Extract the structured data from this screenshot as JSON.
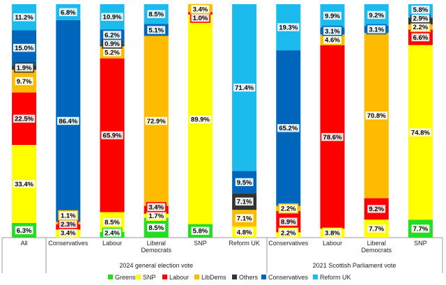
{
  "chart_data": {
    "type": "bar",
    "stacked": true,
    "normalized": true,
    "title": "",
    "xlabel": "",
    "ylabel": "",
    "ylim": [
      0,
      100
    ],
    "grid": false,
    "legend_position": "bottom",
    "groups": [
      {
        "label": "",
        "columns": [
          "All"
        ]
      },
      {
        "label": "2024 general election vote",
        "columns": [
          "Conservatives",
          "Labour",
          "Liberal Democrats",
          "SNP",
          "Reform UK"
        ]
      },
      {
        "label": "2021 Scottish Parliament vote",
        "columns": [
          "Conservatives",
          "Labour",
          "Liberal Democrats",
          "SNP"
        ]
      }
    ],
    "categories": [
      "All",
      "Conservatives",
      "Labour",
      "Liberal Democrats",
      "SNP",
      "Reform UK",
      "Conservatives",
      "Labour",
      "Liberal Democrats",
      "SNP"
    ],
    "category_labels": [
      [
        "All"
      ],
      [
        "Conservatives"
      ],
      [
        "Labour"
      ],
      [
        "Liberal",
        "Democrats"
      ],
      [
        "SNP"
      ],
      [
        "Reform UK"
      ],
      [
        "Conservatives"
      ],
      [
        "Labour"
      ],
      [
        "Liberal",
        "Democrats"
      ],
      [
        "SNP"
      ]
    ],
    "series": [
      {
        "name": "Greens",
        "color": "#22dd22",
        "values": [
          6.3,
          0,
          2.4,
          8.5,
          5.8,
          0,
          0,
          0,
          0,
          7.7
        ]
      },
      {
        "name": "SNP",
        "color": "#ffff00",
        "values": [
          33.4,
          3.4,
          8.5,
          1.7,
          89.9,
          4.8,
          2.2,
          3.8,
          7.7,
          74.8
        ]
      },
      {
        "name": "Labour",
        "color": "#ff0000",
        "values": [
          22.5,
          2.3,
          65.9,
          3.4,
          1.0,
          0,
          8.9,
          78.6,
          9.2,
          6.6
        ]
      },
      {
        "name": "LibDems",
        "color": "#ffbb00",
        "values": [
          9.7,
          1.1,
          5.2,
          72.9,
          3.4,
          7.1,
          2.2,
          4.6,
          70.8,
          2.2
        ]
      },
      {
        "name": "Others",
        "color": "#333333",
        "values": [
          1.9,
          0,
          0.9,
          0,
          0,
          7.1,
          0,
          0,
          0,
          2.9
        ]
      },
      {
        "name": "Conservatives",
        "color": "#0066bb",
        "values": [
          15.0,
          86.4,
          6.2,
          5.1,
          0,
          9.5,
          65.2,
          3.1,
          3.1,
          0
        ]
      },
      {
        "name": "Reform UK",
        "color": "#1bbbee",
        "values": [
          11.2,
          6.8,
          10.9,
          8.5,
          0,
          71.4,
          19.3,
          9.9,
          9.2,
          5.8
        ]
      }
    ],
    "data_labels": [
      [
        [
          "Greens",
          "6.3%"
        ],
        [
          "SNP",
          "33.4%"
        ],
        [
          "Labour",
          "22.5%"
        ],
        [
          "LibDems",
          "9.7%"
        ],
        [
          "Others",
          "1.9%"
        ],
        [
          "Conservatives",
          "15.0%"
        ],
        [
          "Reform UK",
          "11.2%"
        ]
      ],
      [
        [
          "SNP",
          "3.4%"
        ],
        [
          "Labour",
          "2.3%"
        ],
        [
          "LibDems",
          "1.1%"
        ],
        [
          "Conservatives",
          "86.4%"
        ],
        [
          "Reform UK",
          "6.8%"
        ]
      ],
      [
        [
          "Greens",
          "2.4%"
        ],
        [
          "SNP",
          "8.5%"
        ],
        [
          "Labour",
          "65.9%"
        ],
        [
          "LibDems",
          "5.2%"
        ],
        [
          "Others",
          "0.9%"
        ],
        [
          "Conservatives",
          "6.2%"
        ],
        [
          "Reform UK",
          "10.9%"
        ]
      ],
      [
        [
          "Greens",
          "8.5%"
        ],
        [
          "SNP",
          "1.7%"
        ],
        [
          "Labour",
          "3.4%"
        ],
        [
          "LibDems",
          "72.9%"
        ],
        [
          "Conservatives",
          "5.1%"
        ],
        [
          "Reform UK",
          "8.5%"
        ]
      ],
      [
        [
          "Greens",
          "5.8%"
        ],
        [
          "SNP",
          "89.9%"
        ],
        [
          "Labour",
          "1.0%"
        ],
        [
          "LibDems",
          "3.4%"
        ]
      ],
      [
        [
          "SNP",
          "4.8%"
        ],
        [
          "LibDems",
          "7.1%"
        ],
        [
          "Others",
          "7.1%"
        ],
        [
          "Conservatives",
          "9.5%"
        ],
        [
          "Reform UK",
          "71.4%"
        ]
      ],
      [
        [
          "SNP",
          "2.2%"
        ],
        [
          "Labour",
          "8.9%"
        ],
        [
          "LibDems",
          "2.2%"
        ],
        [
          "Conservatives",
          "65.2%"
        ],
        [
          "Reform UK",
          "19.3%"
        ]
      ],
      [
        [
          "SNP",
          "3.8%"
        ],
        [
          "Labour",
          "78.6%"
        ],
        [
          "LibDems",
          "4.6%"
        ],
        [
          "Conservatives",
          "3.1%"
        ],
        [
          "Reform UK",
          "9.9%"
        ]
      ],
      [
        [
          "SNP",
          "7.7%"
        ],
        [
          "Labour",
          "9.2%"
        ],
        [
          "LibDems",
          "70.8%"
        ],
        [
          "Conservatives",
          "3.1%"
        ],
        [
          "Reform UK",
          "9.2%"
        ]
      ],
      [
        [
          "Greens",
          "7.7%"
        ],
        [
          "SNP",
          "74.8%"
        ],
        [
          "Labour",
          "6.6%"
        ],
        [
          "LibDems",
          "2.2%"
        ],
        [
          "Others",
          "2.9%"
        ],
        [
          "Reform UK",
          "5.8%"
        ]
      ]
    ]
  }
}
